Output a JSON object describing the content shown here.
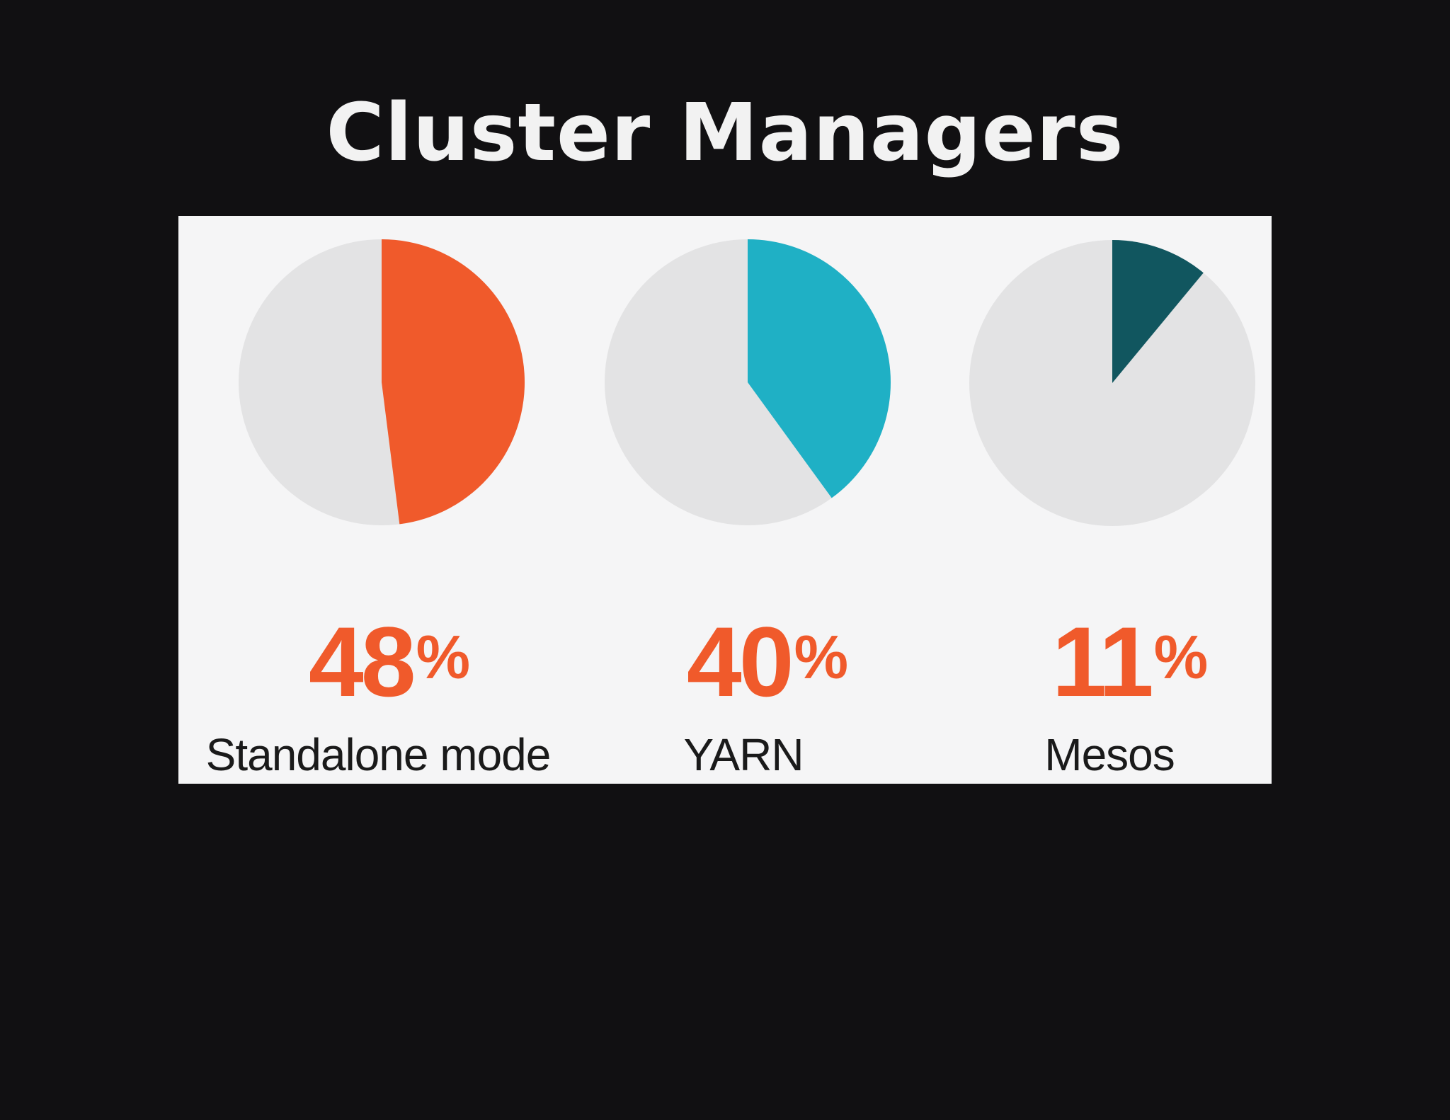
{
  "slide": {
    "title": "Cluster Managers"
  },
  "chart_data": {
    "type": "pie",
    "title": "Cluster Managers",
    "unit": "%",
    "background_color": "#e3e3e4",
    "items": [
      {
        "name": "Standalone mode",
        "value": 48,
        "display": "48",
        "color": "#f05a2b"
      },
      {
        "name": "YARN",
        "value": 40,
        "display": "40",
        "color": "#1fb0c5"
      },
      {
        "name": "Mesos",
        "value": 11,
        "display": "11",
        "color": "#11565f"
      }
    ]
  }
}
